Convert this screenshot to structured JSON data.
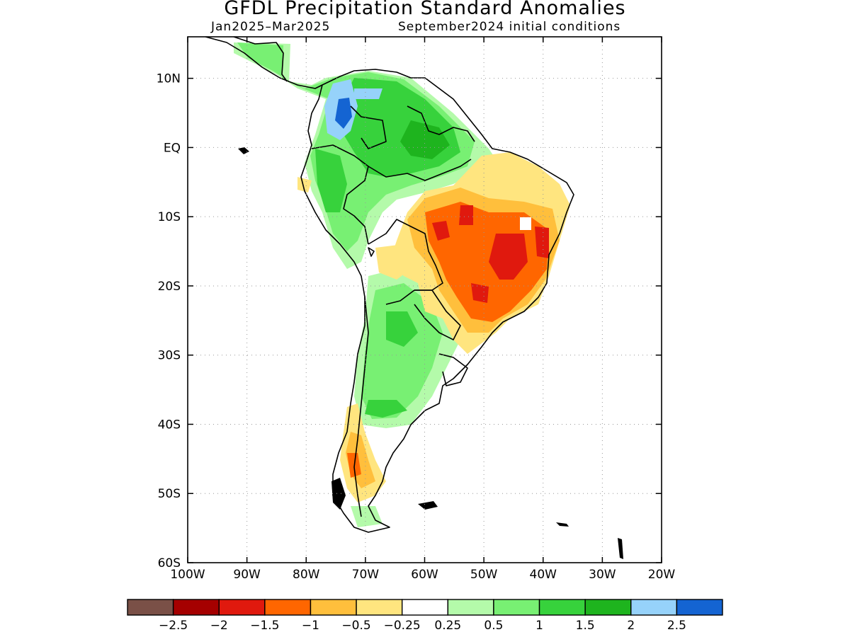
{
  "title": "GFDL Precipitation Standard Anomalies",
  "subtitle_left": "Jan2025–Mar2025",
  "subtitle_right": "September2024 initial conditions",
  "map": {
    "lat_range": [
      -60,
      16
    ],
    "lon_range": [
      -100,
      -20
    ],
    "lat_ticks": [
      {
        "value": 10,
        "label": "10N"
      },
      {
        "value": 0,
        "label": "EQ"
      },
      {
        "value": -10,
        "label": "10S"
      },
      {
        "value": -20,
        "label": "20S"
      },
      {
        "value": -30,
        "label": "30S"
      },
      {
        "value": -40,
        "label": "40S"
      },
      {
        "value": -50,
        "label": "50S"
      },
      {
        "value": -60,
        "label": "60S"
      }
    ],
    "lon_ticks": [
      {
        "value": -100,
        "label": "100W"
      },
      {
        "value": -90,
        "label": "90W"
      },
      {
        "value": -80,
        "label": "80W"
      },
      {
        "value": -70,
        "label": "70W"
      },
      {
        "value": -60,
        "label": "60W"
      },
      {
        "value": -50,
        "label": "50W"
      },
      {
        "value": -40,
        "label": "40W"
      },
      {
        "value": -30,
        "label": "30W"
      },
      {
        "value": -20,
        "label": "20W"
      }
    ],
    "grid": "dotted",
    "colorbar": {
      "colors": [
        "#7a5047",
        "#a50000",
        "#e0190e",
        "#ff6600",
        "#ffbf3c",
        "#ffe57f",
        "#ffffff",
        "#b4faaa",
        "#78f073",
        "#37d23c",
        "#1eb41e",
        "#96d2fa",
        "#1464d2"
      ],
      "labels": [
        "−2.5",
        "−2",
        "−1.5",
        "−1",
        "−0.5",
        "−0.25",
        "0.25",
        "0.5",
        "1",
        "1.5",
        "2",
        "2.5"
      ]
    },
    "regions": [
      {
        "anomaly": "-1.5",
        "description": "Central and northeastern Brazil dry core"
      },
      {
        "anomaly": "-1",
        "description": "Central Brazil dry anomaly"
      },
      {
        "anomaly": "-0.5",
        "description": "Eastern Brazil and Patagonia dry anomaly"
      },
      {
        "anomaly": "1.5",
        "description": "Amazon / northern South America wet anomaly"
      },
      {
        "anomaly": "2.5",
        "description": "Colombian Andes wet anomaly"
      }
    ]
  }
}
